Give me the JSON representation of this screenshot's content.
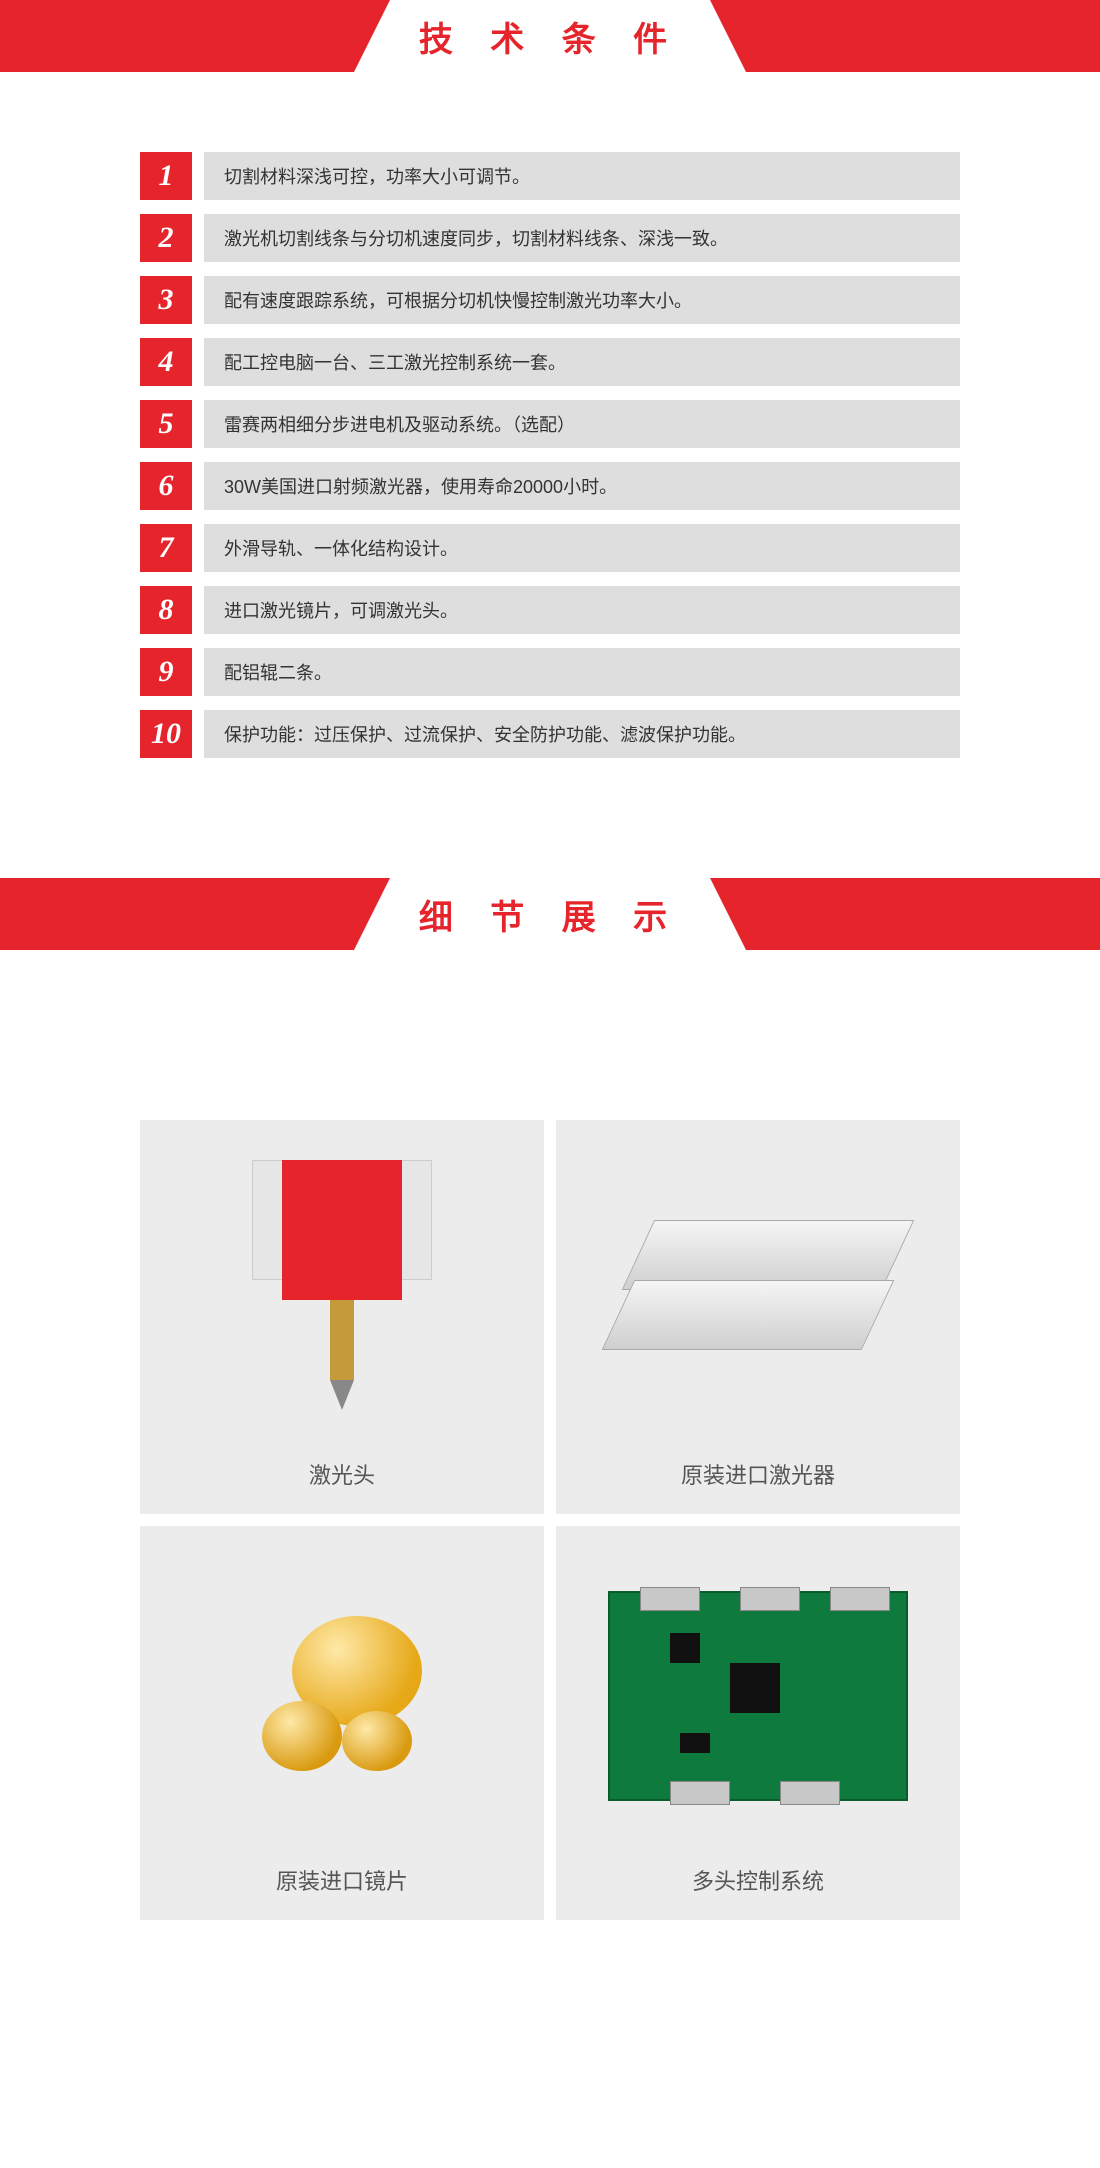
{
  "colors": {
    "accent": "#e6242b",
    "row_bg": "#dedede",
    "card_bg": "#ececec",
    "text": "#333333",
    "label": "#555555"
  },
  "typography": {
    "banner_title_pt": 26,
    "row_text_pt": 14,
    "card_label_pt": 16
  },
  "section1": {
    "title": "技 术 条 件",
    "items": [
      {
        "n": "1",
        "text": "切割材料深浅可控，功率大小可调节。"
      },
      {
        "n": "2",
        "text": "激光机切割线条与分切机速度同步，切割材料线条、深浅一致。"
      },
      {
        "n": "3",
        "text": "配有速度跟踪系统，可根据分切机快慢控制激光功率大小。"
      },
      {
        "n": "4",
        "text": "配工控电脑一台、三工激光控制系统一套。"
      },
      {
        "n": "5",
        "text": "雷赛两相细分步进电机及驱动系统。（选配）"
      },
      {
        "n": "6",
        "text": "30W美国进口射频激光器，使用寿命20000小时。"
      },
      {
        "n": "7",
        "text": "外滑导轨、一体化结构设计。"
      },
      {
        "n": "8",
        "text": "进口激光镜片，可调激光头。"
      },
      {
        "n": "9",
        "text": "配铝辊二条。"
      },
      {
        "n": "10",
        "text": "保护功能：过压保护、过流保护、安全防护功能、滤波保护功能。"
      }
    ]
  },
  "section2": {
    "title": "细 节 展 示",
    "cards": [
      {
        "label": "激光头",
        "kind": "laser-head"
      },
      {
        "label": "原装进口激光器",
        "kind": "laser-tube"
      },
      {
        "label": "原装进口镜片",
        "kind": "lens"
      },
      {
        "label": "多头控制系统",
        "kind": "pcb"
      }
    ]
  }
}
